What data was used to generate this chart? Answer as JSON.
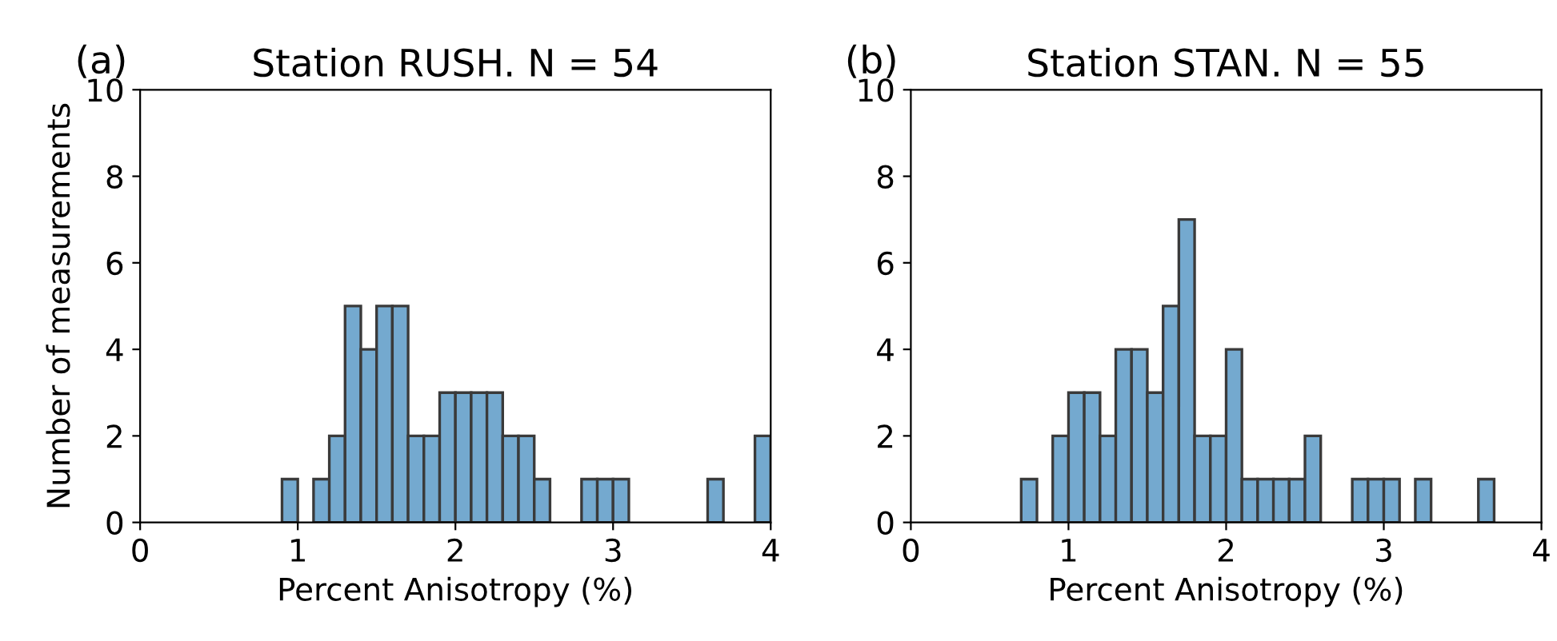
{
  "chart_data": [
    {
      "type": "histogram",
      "title": "Station RUSH. N = 54",
      "xlabel": "Percent Anisotropy (%)",
      "ylabel": "Number of measurements",
      "annotations": [
        "(a)"
      ],
      "color": "#74a9cf",
      "bins": [
        0.9,
        1.0,
        1.1,
        1.2,
        1.3,
        1.4,
        1.5,
        1.6,
        1.7,
        1.8,
        1.9,
        2.0,
        2.1,
        2.2,
        2.3,
        2.4,
        2.5,
        2.6,
        2.7,
        2.8,
        2.9,
        3.0,
        3.1,
        3.2,
        3.3,
        3.4,
        3.5,
        3.6,
        3.7,
        3.8,
        3.9,
        4.0
      ],
      "values": [
        1,
        0,
        1,
        2,
        5,
        4,
        5,
        5,
        2,
        2,
        3,
        3,
        3,
        3,
        2,
        2,
        1,
        0,
        0,
        1,
        1,
        1,
        0,
        0,
        0,
        0,
        0,
        1,
        0,
        0,
        2
      ],
      "xlim": [
        0,
        4
      ],
      "xticks": [
        0,
        1,
        2,
        3,
        4
      ],
      "ylim": [
        0,
        10
      ],
      "yticks": [
        0,
        2,
        4,
        6,
        8,
        10
      ],
      "grid": false,
      "legend": false
    },
    {
      "type": "histogram",
      "title": "Station STAN. N = 55",
      "xlabel": "Percent Anisotropy (%)",
      "annotations": [
        "(b)"
      ],
      "color": "#74a9cf",
      "bins": [
        0.7,
        0.8,
        0.9,
        1.0,
        1.1,
        1.2,
        1.3,
        1.4,
        1.5,
        1.6,
        1.7,
        1.8,
        1.9,
        2.0,
        2.1,
        2.2,
        2.3,
        2.4,
        2.5,
        2.6,
        2.7,
        2.8,
        2.9,
        3.0,
        3.1,
        3.2,
        3.3,
        3.4,
        3.5,
        3.6,
        3.7
      ],
      "values": [
        1,
        0,
        2,
        3,
        3,
        2,
        4,
        4,
        3,
        5,
        7,
        2,
        2,
        4,
        1,
        1,
        1,
        1,
        2,
        0,
        0,
        1,
        1,
        1,
        0,
        1,
        0,
        0,
        0,
        1
      ],
      "xlim": [
        0,
        4
      ],
      "xticks": [
        0,
        1,
        2,
        3,
        4
      ],
      "ylim": [
        0,
        10
      ],
      "yticks": [
        0,
        2,
        4,
        6,
        8,
        10
      ],
      "grid": false,
      "legend": false
    }
  ]
}
